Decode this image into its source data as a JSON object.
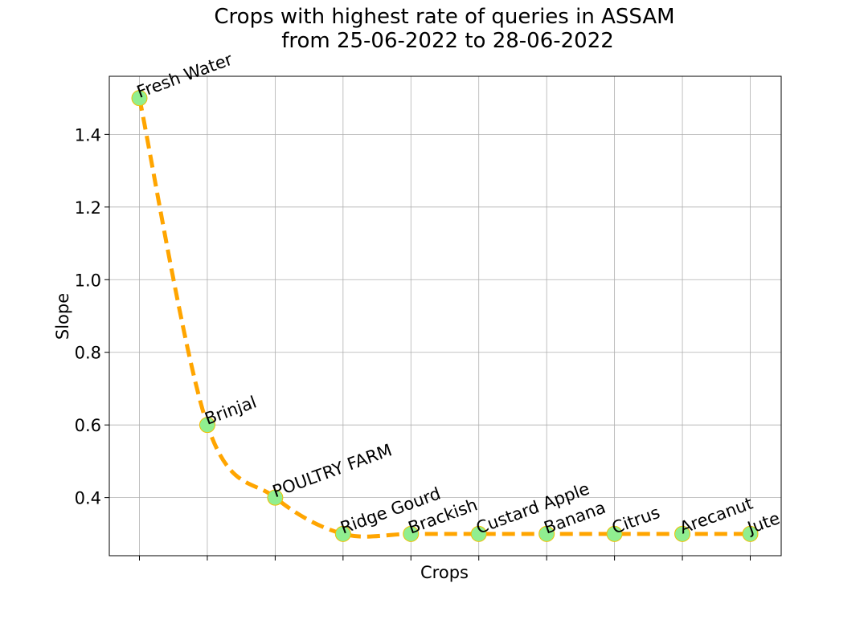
{
  "chart_data": {
    "type": "line",
    "title": "Crops with highest rate of queries in ASSAM",
    "subtitle": "from 25-06-2022 to 28-06-2022",
    "xlabel": "Crops",
    "ylabel": "Slope",
    "categories": [
      "Fresh Water",
      "Brinjal",
      "POULTRY  FARM",
      "Ridge Gourd",
      "Brackish",
      "Custard Apple",
      "Banana",
      "Citrus",
      "Arecanut",
      "Jute"
    ],
    "values": [
      1.5,
      0.6,
      0.4,
      0.3,
      0.3,
      0.3,
      0.3,
      0.3,
      0.3,
      0.3
    ],
    "ylim": [
      0.24,
      1.56
    ],
    "yticks": [
      0.4,
      0.6,
      0.8,
      1.0,
      1.2,
      1.4
    ],
    "ytick_labels": [
      "0.4",
      "0.6",
      "0.8",
      "1.0",
      "1.2",
      "1.4"
    ],
    "grid": true,
    "line_style": "dashed",
    "line_color": "#ffa500",
    "marker_color": "#90ee90",
    "marker_edge_color": "#f0c000"
  }
}
